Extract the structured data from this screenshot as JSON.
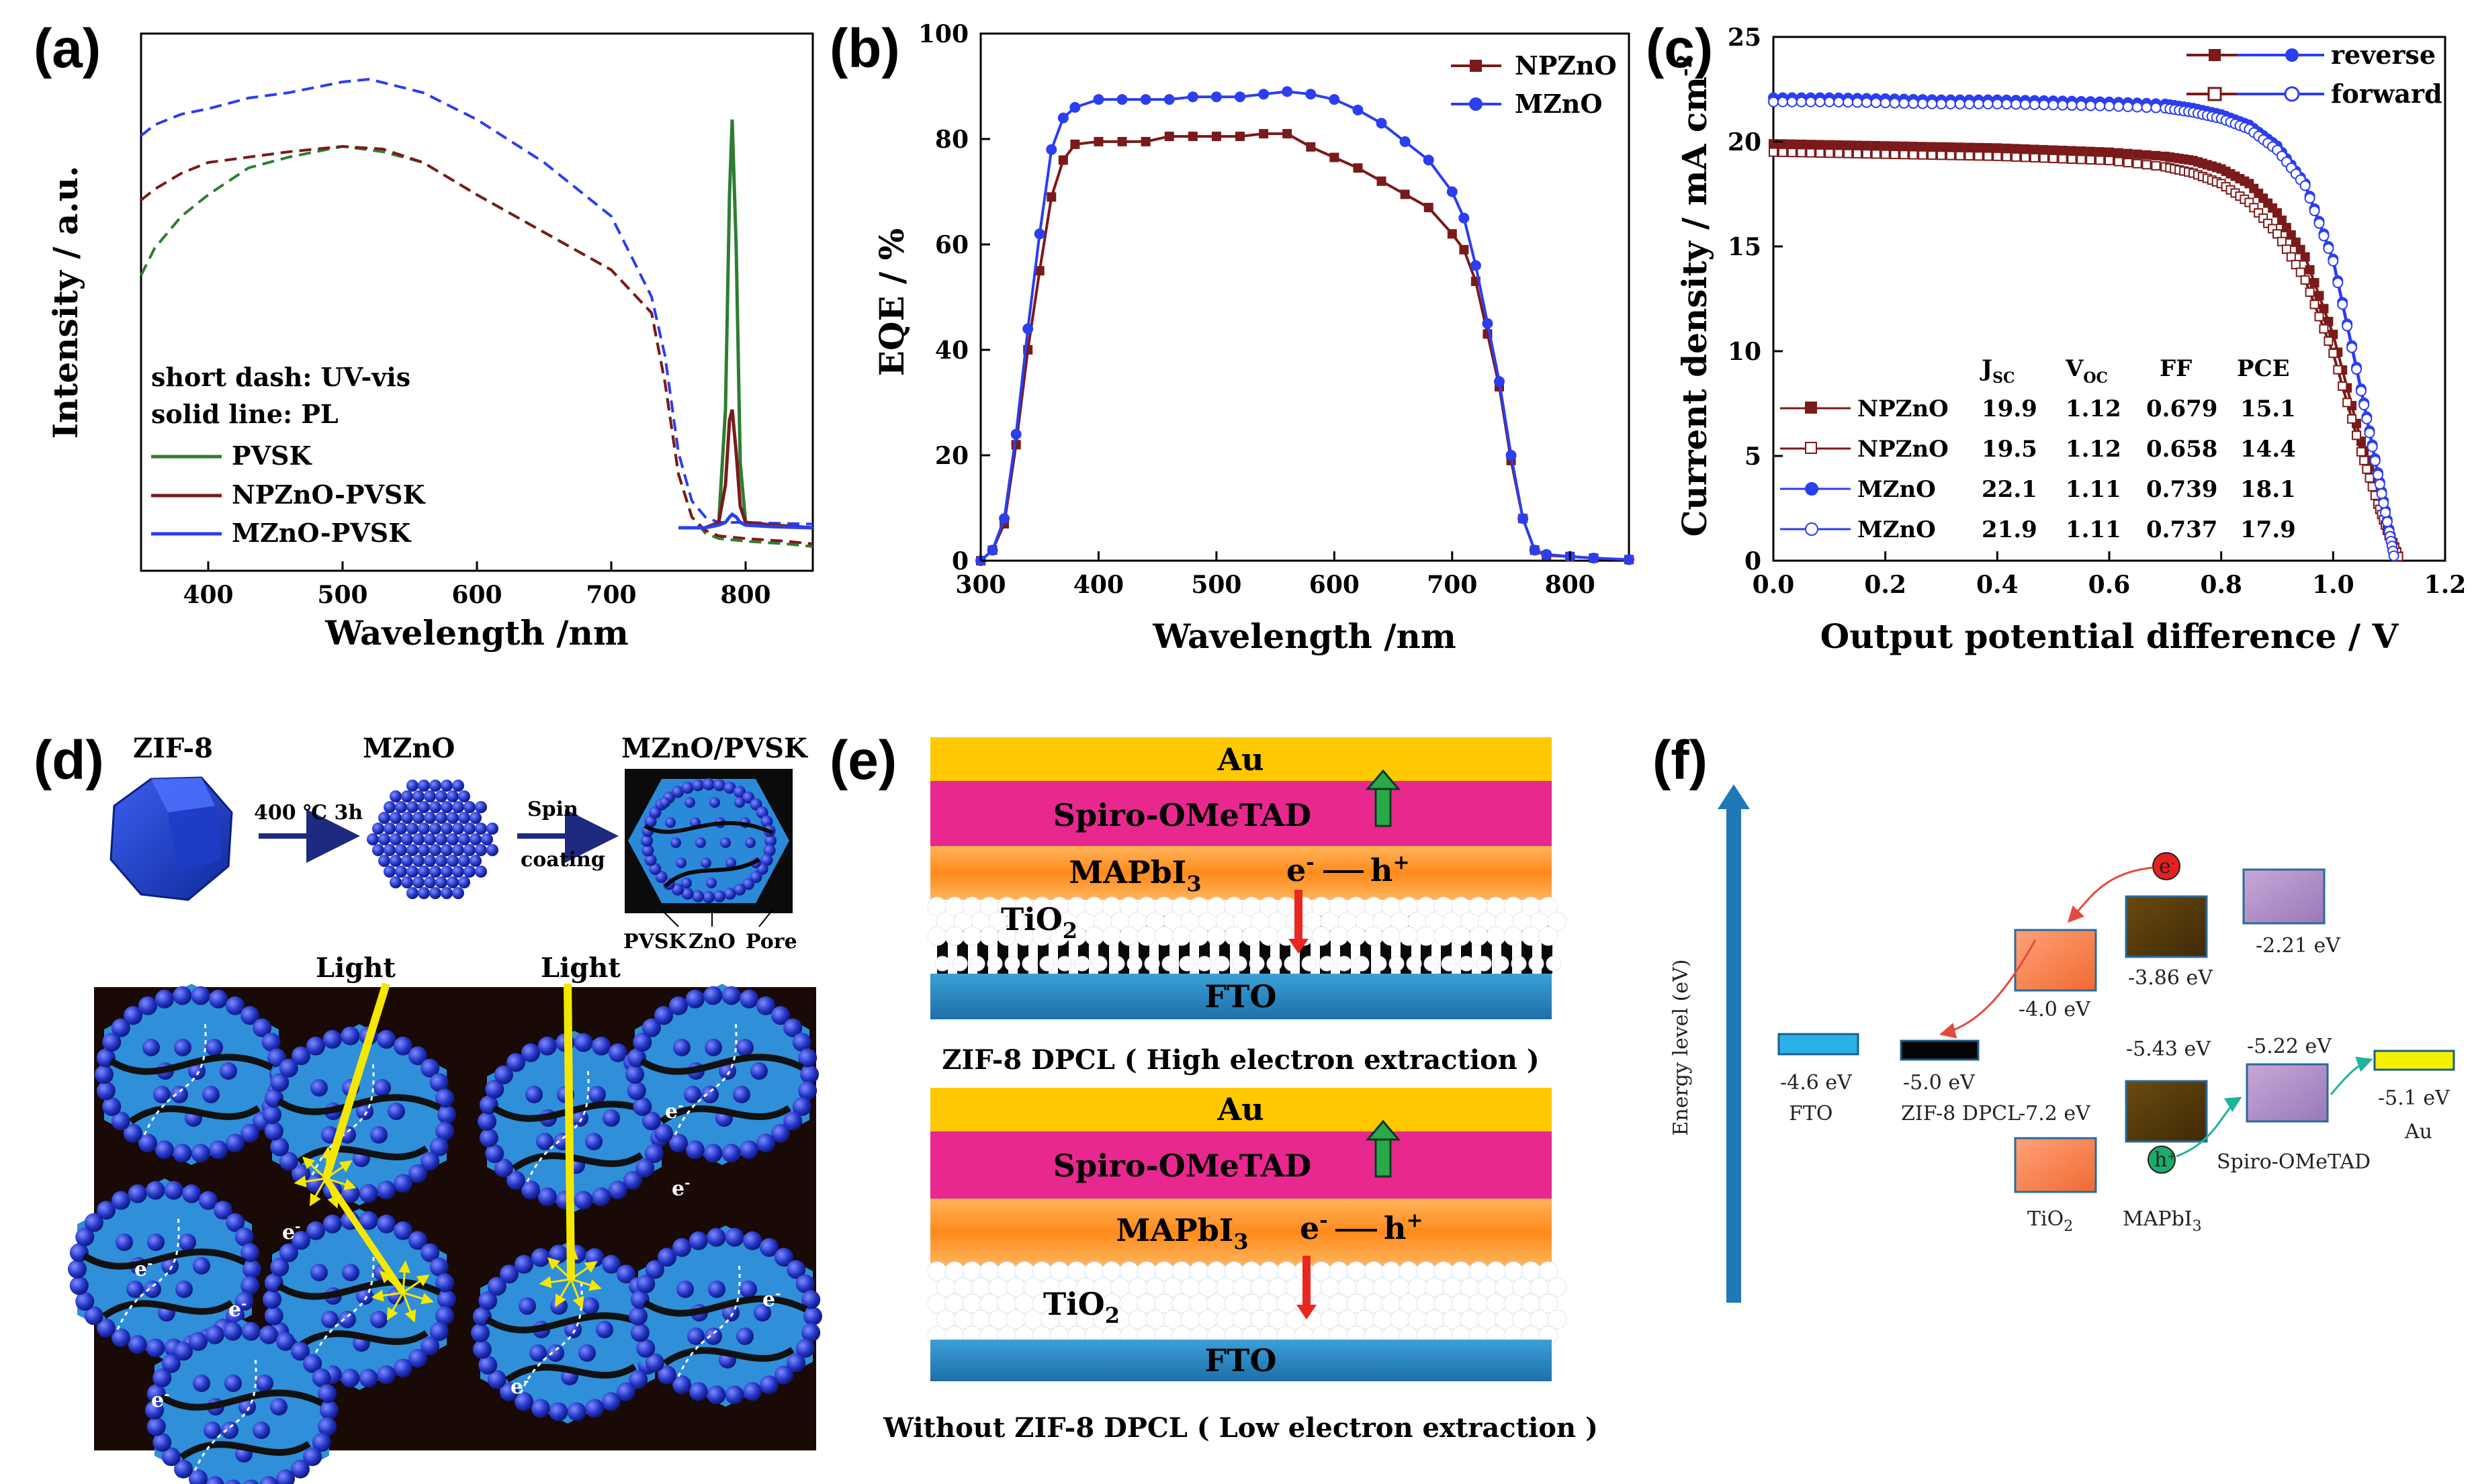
{
  "panels": {
    "a": {
      "label": "(a)",
      "xlabel": "Wavelength /nm",
      "ylabel": "Intensity / a.u.",
      "xticks": [
        "400",
        "500",
        "600",
        "700",
        "800"
      ],
      "legend_notes": [
        "short dash: UV-vis",
        "solid line: PL"
      ],
      "legend": [
        "PVSK",
        "NPZnO-PVSK",
        "MZnO-PVSK"
      ]
    },
    "b": {
      "label": "(b)",
      "xlabel": "Wavelength /nm",
      "ylabel": "EQE / %",
      "xticks": [
        "300",
        "400",
        "500",
        "600",
        "700",
        "800"
      ],
      "yticks": [
        "0",
        "20",
        "40",
        "60",
        "80",
        "100"
      ],
      "legend": [
        "NPZnO",
        "MZnO"
      ]
    },
    "c": {
      "label": "(c)",
      "xlabel": "Output potential difference / V",
      "ylabel": "Current density / mA cm",
      "ylabel_sup": "-2",
      "xticks": [
        "0.0",
        "0.2",
        "0.4",
        "0.6",
        "0.8",
        "1.0",
        "1.2"
      ],
      "yticks": [
        "0",
        "5",
        "10",
        "15",
        "20",
        "25"
      ],
      "legend": [
        "reverse",
        "forward"
      ],
      "table_header": {
        "jsc": "J",
        "jsc_sub": "SC",
        "voc": "V",
        "voc_sub": "OC",
        "ff": "FF",
        "pce": "PCE"
      },
      "table_rows": [
        {
          "name": "NPZnO",
          "jsc": "19.9",
          "voc": "1.12",
          "ff": "0.679",
          "pce": "15.1"
        },
        {
          "name": "NPZnO",
          "jsc": "19.5",
          "voc": "1.12",
          "ff": "0.658",
          "pce": "14.4"
        },
        {
          "name": "MZnO",
          "jsc": "22.1",
          "voc": "1.11",
          "ff": "0.739",
          "pce": "18.1"
        },
        {
          "name": "MZnO",
          "jsc": "21.9",
          "voc": "1.11",
          "ff": "0.737",
          "pce": "17.9"
        }
      ]
    },
    "d": {
      "label": "(d)",
      "zif8": "ZIF-8",
      "mzno": "MZnO",
      "mzno_pvsk": "MZnO/PVSK",
      "step1": "400 ℃ 3h",
      "step2a": "Spin",
      "step2b": "coating",
      "parts": [
        "PVSK",
        "ZnO",
        "Pore"
      ],
      "light": "Light",
      "electron": "e",
      "electron_sup": "-"
    },
    "e": {
      "label": "(e)",
      "layers": {
        "au": "Au",
        "spiro": "Spiro-OMeTAD",
        "mapbi": "MAPbI",
        "mapbi_sub": "3",
        "tio": "TiO",
        "tio_sub": "2",
        "fto": "FTO"
      },
      "carriers": {
        "e": "e",
        "e_sup": "-",
        "h": "h",
        "h_sup": "+"
      },
      "caption_top": "ZIF-8 DPCL ( High electron extraction )",
      "caption_bottom": "Without ZIF-8 DPCL ( Low electron extraction )"
    },
    "f": {
      "label": "(f)",
      "ylabel": "Energy level (eV)",
      "levels": {
        "fto": "-4.6 eV",
        "zif_lumo": "-5.0 eV",
        "tio_cb": "-4.0 eV",
        "tio_vb": "-7.2 eV",
        "mapbi_cb": "-3.86 eV",
        "mapbi_vb": "-5.43 eV",
        "spiro_lumo": "-2.21 eV",
        "spiro_homo": "-5.22 eV",
        "au": "-5.1 eV"
      },
      "names": {
        "fto": "FTO",
        "zif": "ZIF-8 DPCL",
        "tio": "TiO",
        "tio_sub": "2",
        "mapbi": "MAPbI",
        "mapbi_sub": "3",
        "spiro": "Spiro-OMeTAD",
        "au": "Au"
      },
      "carrier_e": "e",
      "carrier_e_sup": "-",
      "carrier_h": "h",
      "carrier_h_sup": "+"
    }
  },
  "chart_data": [
    {
      "type": "line",
      "title": "(a)",
      "xlabel": "Wavelength /nm",
      "ylabel": "Intensity / a.u.",
      "xlim": [
        350,
        850
      ],
      "ylim": [
        0,
        100
      ],
      "series": [
        {
          "name": "PVSK UV-vis",
          "style": "dash",
          "color": "#2e7d32",
          "x": [
            350,
            360,
            380,
            400,
            430,
            460,
            500,
            530,
            560,
            600,
            650,
            700,
            730,
            740,
            750,
            760,
            770,
            780,
            800,
            830,
            850
          ],
          "y": [
            55,
            60,
            66,
            70,
            75,
            77,
            79,
            78,
            76,
            70,
            63,
            56,
            48,
            35,
            18,
            10,
            7,
            6,
            5.5,
            5,
            4.5
          ]
        },
        {
          "name": "NPZnO-PVSK UV-vis",
          "style": "dash",
          "color": "#7b1a1a",
          "x": [
            350,
            360,
            380,
            400,
            430,
            460,
            500,
            530,
            560,
            600,
            650,
            700,
            730,
            740,
            750,
            760,
            770,
            780,
            800,
            830,
            850
          ],
          "y": [
            69,
            71,
            74,
            76,
            77,
            78,
            79,
            78.5,
            76,
            70,
            63,
            56,
            48,
            35,
            18,
            10,
            7.5,
            6.5,
            6,
            5.5,
            5
          ]
        },
        {
          "name": "MZnO-PVSK UV-vis",
          "style": "dash",
          "color": "#2b3ef0",
          "x": [
            350,
            360,
            380,
            400,
            430,
            460,
            500,
            520,
            560,
            600,
            650,
            700,
            730,
            740,
            750,
            760,
            770,
            780,
            800,
            830,
            850
          ],
          "y": [
            81,
            83,
            85,
            86,
            88,
            89,
            91,
            91.5,
            89,
            84,
            76,
            66,
            51,
            40,
            22,
            13,
            10,
            9,
            9,
            8.8,
            8.7
          ]
        },
        {
          "name": "PVSK PL",
          "style": "solid",
          "color": "#2e7d32",
          "x": [
            750,
            770,
            780,
            785,
            788,
            790,
            793,
            796,
            800,
            820,
            850
          ],
          "y": [
            8,
            8,
            9,
            30,
            70,
            84,
            60,
            20,
            9,
            8.5,
            8
          ]
        },
        {
          "name": "NPZnO-PVSK PL",
          "style": "solid",
          "color": "#7b1a1a",
          "x": [
            750,
            770,
            780,
            785,
            788,
            790,
            793,
            796,
            800,
            820,
            850
          ],
          "y": [
            8,
            8,
            9,
            16,
            28,
            30,
            22,
            12,
            9,
            8.5,
            8
          ]
        },
        {
          "name": "MZnO-PVSK PL",
          "style": "solid",
          "color": "#2b3ef0",
          "x": [
            750,
            770,
            780,
            785,
            788,
            790,
            793,
            796,
            800,
            820,
            850
          ],
          "y": [
            8,
            8,
            8.5,
            9,
            10,
            10.5,
            10,
            9,
            8.5,
            8.2,
            8
          ]
        }
      ]
    },
    {
      "type": "line",
      "title": "(b)",
      "xlabel": "Wavelength /nm",
      "ylabel": "EQE / %",
      "xlim": [
        300,
        850
      ],
      "ylim": [
        0,
        100
      ],
      "series": [
        {
          "name": "NPZnO",
          "color": "#7b1a1a",
          "marker": "square",
          "x": [
            300,
            310,
            320,
            330,
            340,
            350,
            360,
            370,
            380,
            400,
            420,
            440,
            460,
            480,
            500,
            520,
            540,
            560,
            580,
            600,
            620,
            640,
            660,
            680,
            700,
            710,
            720,
            730,
            740,
            750,
            760,
            770,
            780,
            800,
            820,
            850
          ],
          "y": [
            0,
            2,
            7,
            22,
            40,
            55,
            69,
            76,
            79,
            79.5,
            79.5,
            79.5,
            80.5,
            80.5,
            80.5,
            80.5,
            81,
            81,
            78.5,
            76.5,
            74.5,
            72,
            69.5,
            67,
            62,
            59,
            53,
            43,
            33,
            19,
            8,
            2,
            1,
            0.8,
            0.5,
            0.2
          ]
        },
        {
          "name": "MZnO",
          "color": "#2b3ef0",
          "marker": "circle",
          "x": [
            300,
            310,
            320,
            330,
            340,
            350,
            360,
            370,
            380,
            400,
            420,
            440,
            460,
            480,
            500,
            520,
            540,
            560,
            580,
            600,
            620,
            640,
            660,
            680,
            700,
            710,
            720,
            730,
            740,
            750,
            760,
            770,
            780,
            800,
            820,
            850
          ],
          "y": [
            0,
            2,
            8,
            24,
            44,
            62,
            78,
            84,
            86,
            87.5,
            87.5,
            87.5,
            87.5,
            88,
            88,
            88,
            88.5,
            89,
            88.5,
            87.5,
            85.5,
            83,
            79.5,
            76,
            70,
            65,
            56,
            45,
            34,
            20,
            8,
            2,
            1.2,
            0.8,
            0.5,
            0.2
          ]
        }
      ]
    },
    {
      "type": "line",
      "title": "(c)",
      "xlabel": "Output potential difference / V",
      "ylabel": "Current density / mA cm-2",
      "xlim": [
        0,
        1.2
      ],
      "ylim": [
        0,
        25
      ],
      "series": [
        {
          "name": "NPZnO reverse",
          "color": "#7b1a1a",
          "marker": "square-filled",
          "x": [
            0,
            0.1,
            0.2,
            0.3,
            0.4,
            0.5,
            0.6,
            0.7,
            0.75,
            0.8,
            0.85,
            0.9,
            0.95,
            1.0,
            1.05,
            1.08,
            1.1,
            1.12
          ],
          "y": [
            19.9,
            19.85,
            19.8,
            19.75,
            19.7,
            19.6,
            19.5,
            19.3,
            19.1,
            18.7,
            18.0,
            16.6,
            14.5,
            10.8,
            5.7,
            3.0,
            1.3,
            0.0
          ]
        },
        {
          "name": "NPZnO forward",
          "color": "#7b1a1a",
          "marker": "square-open",
          "x": [
            0,
            0.1,
            0.2,
            0.3,
            0.4,
            0.5,
            0.6,
            0.7,
            0.75,
            0.8,
            0.85,
            0.9,
            0.95,
            1.0,
            1.05,
            1.08,
            1.1,
            1.12
          ],
          "y": [
            19.5,
            19.45,
            19.4,
            19.35,
            19.3,
            19.2,
            19.1,
            18.8,
            18.5,
            18.0,
            17.1,
            15.6,
            13.4,
            9.9,
            5.2,
            2.7,
            1.2,
            0.0
          ]
        },
        {
          "name": "MZnO reverse",
          "color": "#2b3ef0",
          "marker": "circle-filled",
          "x": [
            0,
            0.1,
            0.2,
            0.3,
            0.4,
            0.5,
            0.6,
            0.7,
            0.75,
            0.8,
            0.85,
            0.9,
            0.95,
            1.0,
            1.05,
            1.08,
            1.1,
            1.11
          ],
          "y": [
            22.1,
            22.1,
            22.05,
            22.0,
            22.0,
            21.95,
            21.9,
            21.8,
            21.6,
            21.3,
            20.8,
            19.8,
            18.0,
            14.4,
            8.2,
            4.2,
            1.5,
            0.0
          ]
        },
        {
          "name": "MZnO forward",
          "color": "#2b3ef0",
          "marker": "circle-open",
          "x": [
            0,
            0.1,
            0.2,
            0.3,
            0.4,
            0.5,
            0.6,
            0.7,
            0.75,
            0.8,
            0.85,
            0.9,
            0.95,
            1.0,
            1.05,
            1.08,
            1.1,
            1.11
          ],
          "y": [
            21.9,
            21.9,
            21.85,
            21.8,
            21.8,
            21.75,
            21.7,
            21.6,
            21.4,
            21.1,
            20.6,
            19.6,
            17.9,
            14.3,
            8.1,
            4.1,
            1.4,
            0.0
          ]
        }
      ]
    }
  ]
}
